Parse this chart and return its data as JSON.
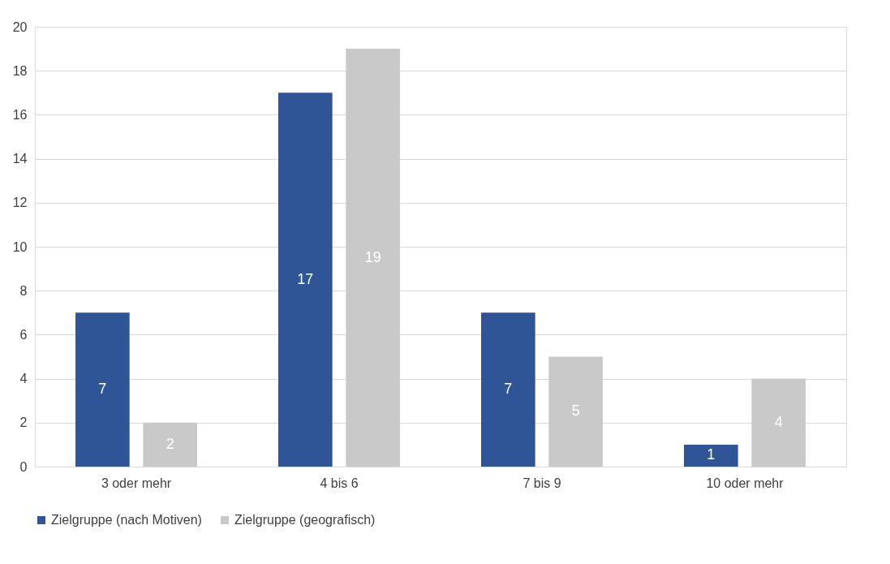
{
  "chart_data": {
    "type": "bar",
    "categories": [
      "3 oder mehr",
      "4 bis 6",
      "7 bis 9",
      "10 oder mehr"
    ],
    "series": [
      {
        "name": "Zielgruppe (nach Motiven)",
        "color": "#2f5597",
        "values": [
          7,
          17,
          7,
          1
        ]
      },
      {
        "name": "Zielgruppe (geografisch)",
        "color": "#c9c9c9",
        "values": [
          2,
          19,
          5,
          4
        ]
      }
    ],
    "ylim": [
      0,
      20
    ],
    "yticks": [
      0,
      2,
      4,
      6,
      8,
      10,
      12,
      14,
      16,
      18,
      20
    ],
    "grid": "y",
    "legend": "bottom",
    "data_labels": true
  }
}
